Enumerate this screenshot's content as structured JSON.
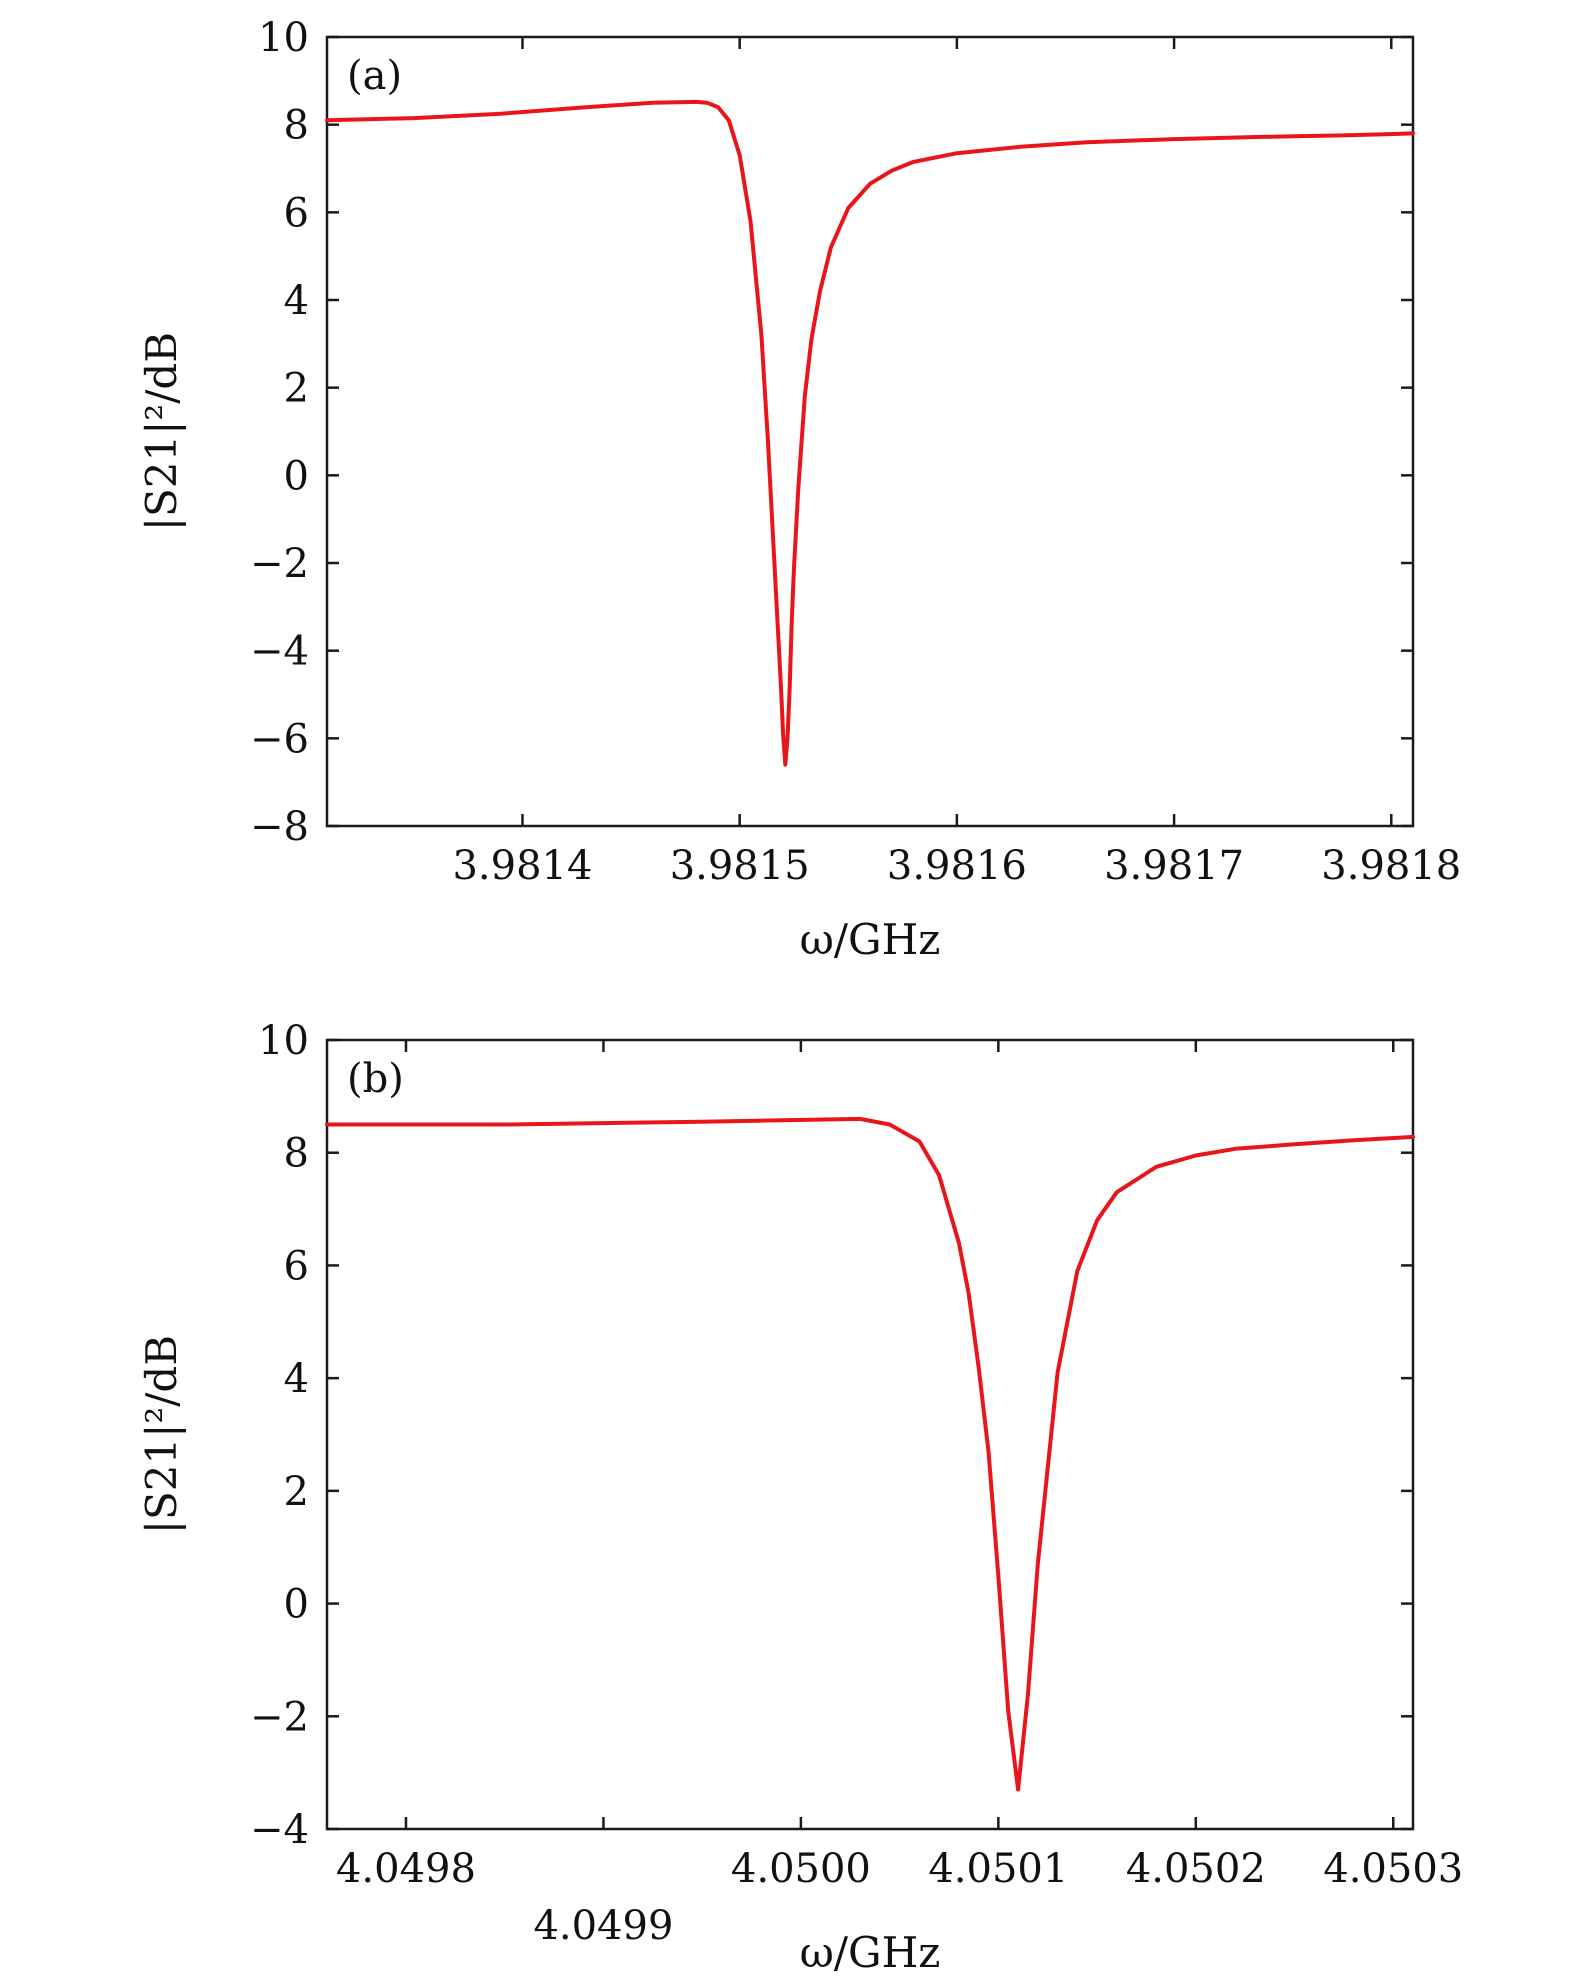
{
  "chart_data": [
    {
      "type": "line",
      "panel_label": "(a)",
      "xlabel": "ω/GHz",
      "ylabel": "|S21|²/dB",
      "xlim": [
        3.98131,
        3.98181
      ],
      "ylim": [
        -8,
        10
      ],
      "xticks": [
        3.9814,
        3.9815,
        3.9816,
        3.9817,
        3.9818
      ],
      "xtick_labels": [
        "3.9814",
        "3.9815",
        "3.9816",
        "3.9817",
        "3.9818"
      ],
      "yticks": [
        -8,
        -6,
        -4,
        -2,
        0,
        2,
        4,
        6,
        8,
        10
      ],
      "ytick_labels": [
        "−8",
        "−6",
        "−4",
        "−2",
        "0",
        "2",
        "4",
        "6",
        "8",
        "10"
      ],
      "grid": false,
      "series": [
        {
          "color": "#e8161b",
          "x": [
            3.98131,
            3.98135,
            3.98139,
            3.98143,
            3.98146,
            3.98148,
            3.981485,
            3.98149,
            3.981495,
            3.9815,
            3.981505,
            3.98151,
            3.981513,
            3.981516,
            3.981519,
            3.98152,
            3.981521,
            3.981522,
            3.981523,
            3.981524,
            3.981525,
            3.981527,
            3.98153,
            3.981533,
            3.981537,
            3.981542,
            3.98155,
            3.98156,
            3.98157,
            3.98158,
            3.9816,
            3.98163,
            3.98166,
            3.9817,
            3.98174,
            3.98178,
            3.98181
          ],
          "y": [
            8.1,
            8.15,
            8.25,
            8.4,
            8.5,
            8.52,
            8.5,
            8.4,
            8.1,
            7.3,
            5.8,
            3.2,
            0.8,
            -2.0,
            -4.8,
            -5.9,
            -6.6,
            -6.0,
            -4.9,
            -3.3,
            -2.1,
            -0.3,
            1.8,
            3.1,
            4.2,
            5.2,
            6.1,
            6.65,
            6.95,
            7.15,
            7.35,
            7.5,
            7.6,
            7.67,
            7.72,
            7.76,
            7.8
          ]
        }
      ]
    },
    {
      "type": "line",
      "panel_label": "(b)",
      "xlabel": "ω/GHz",
      "ylabel": "|S21|²/dB",
      "xlim": [
        4.04976,
        4.05031
      ],
      "ylim": [
        -4,
        10
      ],
      "xticks": [
        4.0498,
        4.0499,
        4.05,
        4.0501,
        4.0502,
        4.0503
      ],
      "xtick_labels": [
        "4.0498",
        "4.0499",
        "4.0500",
        "4.0501",
        "4.0502",
        "4.0503"
      ],
      "yticks": [
        -4,
        -2,
        0,
        2,
        4,
        6,
        8,
        10
      ],
      "ytick_labels": [
        "−4",
        "−2",
        "0",
        "2",
        "4",
        "6",
        "8",
        "10"
      ],
      "grid": false,
      "series": [
        {
          "color": "#e8161b",
          "x": [
            4.04976,
            4.04985,
            4.04995,
            4.05003,
            4.050045,
            4.05006,
            4.05007,
            4.05008,
            4.050085,
            4.05009,
            4.050095,
            4.0501,
            4.050105,
            4.05011,
            4.050115,
            4.05012,
            4.05013,
            4.05014,
            4.05015,
            4.05016,
            4.05018,
            4.0502,
            4.05022,
            4.05025,
            4.05028,
            4.05031
          ],
          "y": [
            8.5,
            8.5,
            8.55,
            8.6,
            8.5,
            8.2,
            7.6,
            6.4,
            5.5,
            4.2,
            2.7,
            0.5,
            -1.9,
            -3.3,
            -1.6,
            0.7,
            4.1,
            5.9,
            6.8,
            7.3,
            7.75,
            7.95,
            8.07,
            8.15,
            8.22,
            8.28
          ]
        }
      ]
    }
  ]
}
